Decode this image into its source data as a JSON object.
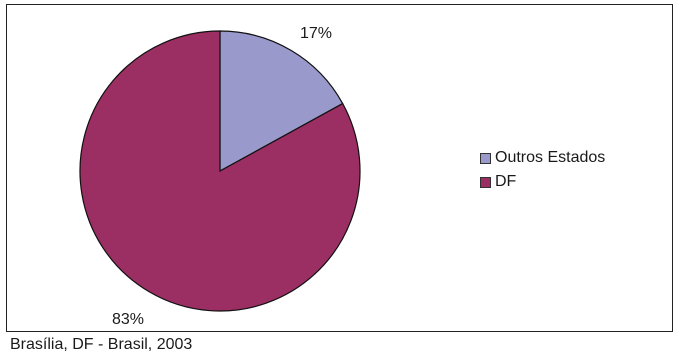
{
  "chart_data": {
    "type": "pie",
    "categories": [
      "Outros Estados",
      "DF"
    ],
    "values": [
      17,
      83
    ],
    "data_labels": [
      "17%",
      "83%"
    ],
    "colors": [
      "#9999cc",
      "#9b2f63"
    ],
    "legend_position": "right",
    "title": "",
    "start_angle": "12 o'clock, clockwise"
  },
  "caption": "Brasília, DF - Brasil, 2003"
}
